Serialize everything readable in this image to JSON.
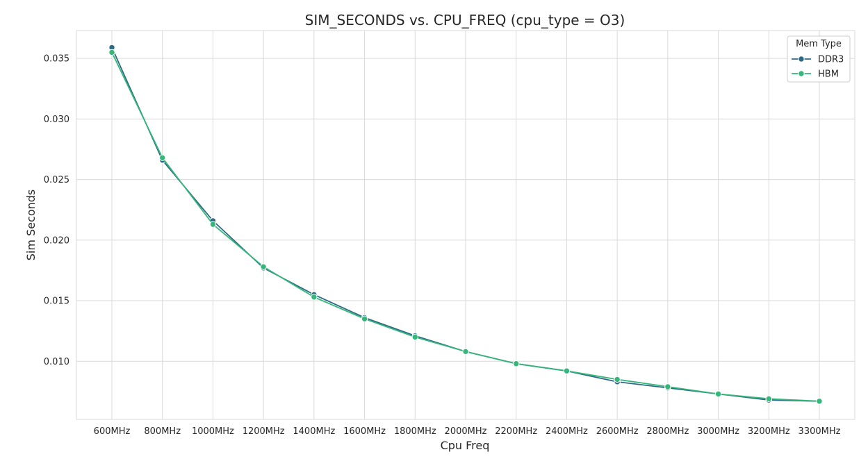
{
  "chart_data": {
    "type": "line",
    "title": "SIM_SECONDS vs. CPU_FREQ (cpu_type = O3)",
    "xlabel": "Cpu Freq",
    "ylabel": "Sim Seconds",
    "categories": [
      "600MHz",
      "800MHz",
      "1000MHz",
      "1200MHz",
      "1400MHz",
      "1600MHz",
      "1800MHz",
      "2000MHz",
      "2200MHz",
      "2400MHz",
      "2600MHz",
      "2800MHz",
      "3000MHz",
      "3200MHz",
      "3300MHz"
    ],
    "yticks": [
      "0.010",
      "0.015",
      "0.020",
      "0.025",
      "0.030",
      "0.035"
    ],
    "ylim": [
      0.0052,
      0.0373
    ],
    "grid": true,
    "legend": {
      "title": "Mem Type",
      "placement": "top-right"
    },
    "series": [
      {
        "name": "DDR3",
        "color": "#2e6a86",
        "values": [
          0.0359,
          0.0266,
          0.0216,
          0.0177,
          0.0155,
          0.0136,
          0.0121,
          0.0108,
          0.0098,
          0.0092,
          0.0083,
          0.0078,
          0.0073,
          0.0068,
          0.0067
        ]
      },
      {
        "name": "HBM",
        "color": "#35b67a",
        "values": [
          0.0355,
          0.0268,
          0.0213,
          0.0178,
          0.0153,
          0.0135,
          0.012,
          0.0108,
          0.0098,
          0.0092,
          0.0085,
          0.0079,
          0.0073,
          0.0069,
          0.0067
        ]
      }
    ]
  }
}
